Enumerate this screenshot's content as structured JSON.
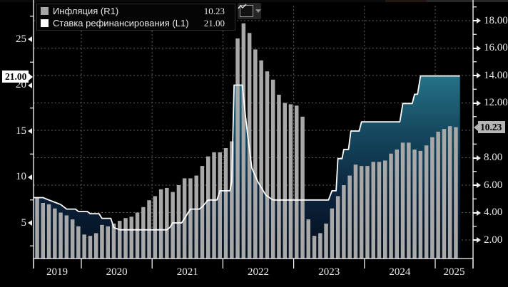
{
  "legend": {
    "items": [
      {
        "label": "Инфляция (R1)",
        "value": "10.23",
        "swatch_color": "#a6a6a6"
      },
      {
        "label": "Ставка рефинансирования (L1)",
        "value": "21.00",
        "swatch_color": "#ffffff"
      }
    ]
  },
  "toolbar": {
    "icons": [
      "line-chart-icon",
      "chevron-down-icon"
    ]
  },
  "axes": {
    "left": {
      "ticks": [
        "5",
        "10",
        "15",
        "20",
        "25"
      ],
      "callout": "21.00"
    },
    "right": {
      "ticks": [
        "2.00",
        "4.00",
        "6.00",
        "8.00",
        "12.00",
        "14.00",
        "16.00",
        "18.00"
      ],
      "callout": "10.23"
    },
    "x": {
      "years": [
        "2019",
        "2020",
        "2021",
        "2022",
        "2023",
        "2024",
        "2025"
      ]
    }
  },
  "chart_data": {
    "type": "combo",
    "start_month": "2019-05",
    "frequency": "monthly",
    "grid": "dashed",
    "colors": {
      "background": "#000000",
      "bar": "#a8a8a8",
      "line": "#ffffff",
      "fill_top": "#27758a",
      "fill_bottom": "#040d1a",
      "grid": "#5f5f5f"
    },
    "left_axis": {
      "label_ticks": [
        5,
        10,
        15,
        20,
        25
      ],
      "minor_step": 2.5,
      "series": "Ставка рефинансирования"
    },
    "right_axis": {
      "label_ticks": [
        2,
        4,
        6,
        8,
        10,
        12,
        14,
        16,
        18
      ],
      "minor_step": 1,
      "series": "Инфляция"
    },
    "series": [
      {
        "name": "Инфляция",
        "type": "bar",
        "axis": "R1",
        "color": "#a8a8a8",
        "last_value": 10.23,
        "values": [
          5.1,
          4.7,
          4.6,
          4.3,
          4.0,
          3.8,
          3.5,
          3.0,
          2.4,
          2.3,
          2.5,
          3.1,
          3.0,
          3.2,
          3.4,
          3.6,
          3.7,
          4.0,
          4.4,
          4.9,
          5.2,
          5.7,
          5.8,
          5.5,
          6.0,
          6.5,
          6.5,
          6.7,
          7.4,
          8.1,
          8.4,
          8.4,
          8.7,
          9.2,
          16.7,
          17.8,
          17.1,
          15.9,
          15.1,
          14.3,
          13.7,
          12.6,
          12.0,
          11.9,
          11.8,
          11.0,
          3.5,
          2.3,
          2.5,
          3.2,
          4.3,
          5.2,
          6.0,
          6.7,
          7.5,
          7.4,
          7.4,
          7.7,
          7.7,
          7.8,
          8.3,
          8.6,
          9.1,
          9.1,
          8.6,
          8.5,
          8.9,
          9.5,
          9.9,
          10.1,
          10.3,
          10.23
        ]
      },
      {
        "name": "Ставка рефинансирования",
        "type": "line",
        "axis": "L1",
        "color": "#ffffff",
        "last_value": 21.0,
        "breakpoints": [
          [
            -0.6,
            7.75
          ],
          [
            1,
            7.75
          ],
          [
            2,
            7.5
          ],
          [
            3,
            7.25
          ],
          [
            4,
            7.0
          ],
          [
            5,
            6.5
          ],
          [
            6.5,
            6.5
          ],
          [
            7,
            6.25
          ],
          [
            8.5,
            6.25
          ],
          [
            9,
            6.0
          ],
          [
            10.5,
            6.0
          ],
          [
            11,
            5.5
          ],
          [
            12.5,
            5.5
          ],
          [
            13,
            4.5
          ],
          [
            14,
            4.25
          ],
          [
            22,
            4.25
          ],
          [
            22.5,
            4.5
          ],
          [
            23,
            5.0
          ],
          [
            24.5,
            5.0
          ],
          [
            25,
            5.5
          ],
          [
            26,
            6.5
          ],
          [
            27.5,
            6.5
          ],
          [
            28,
            6.75
          ],
          [
            29,
            7.5
          ],
          [
            30.5,
            7.5
          ],
          [
            31,
            8.5
          ],
          [
            32.7,
            8.5
          ],
          [
            33,
            9.5
          ],
          [
            33.4,
            20
          ],
          [
            34.8,
            20
          ],
          [
            35.3,
            16.8
          ],
          [
            35.8,
            14
          ],
          [
            36.4,
            11
          ],
          [
            37.4,
            9.5
          ],
          [
            38.8,
            8
          ],
          [
            40,
            7.5
          ],
          [
            49.4,
            7.5
          ],
          [
            50,
            8.5
          ],
          [
            50.7,
            8.5
          ],
          [
            51,
            12
          ],
          [
            51.7,
            12
          ],
          [
            52,
            13
          ],
          [
            52.8,
            13
          ],
          [
            53.2,
            15
          ],
          [
            54.6,
            15
          ],
          [
            55,
            16
          ],
          [
            61.5,
            16
          ],
          [
            62,
            18
          ],
          [
            63.6,
            18
          ],
          [
            64,
            19
          ],
          [
            64.5,
            19
          ],
          [
            65,
            21
          ],
          [
            71.7,
            21
          ]
        ]
      }
    ]
  }
}
